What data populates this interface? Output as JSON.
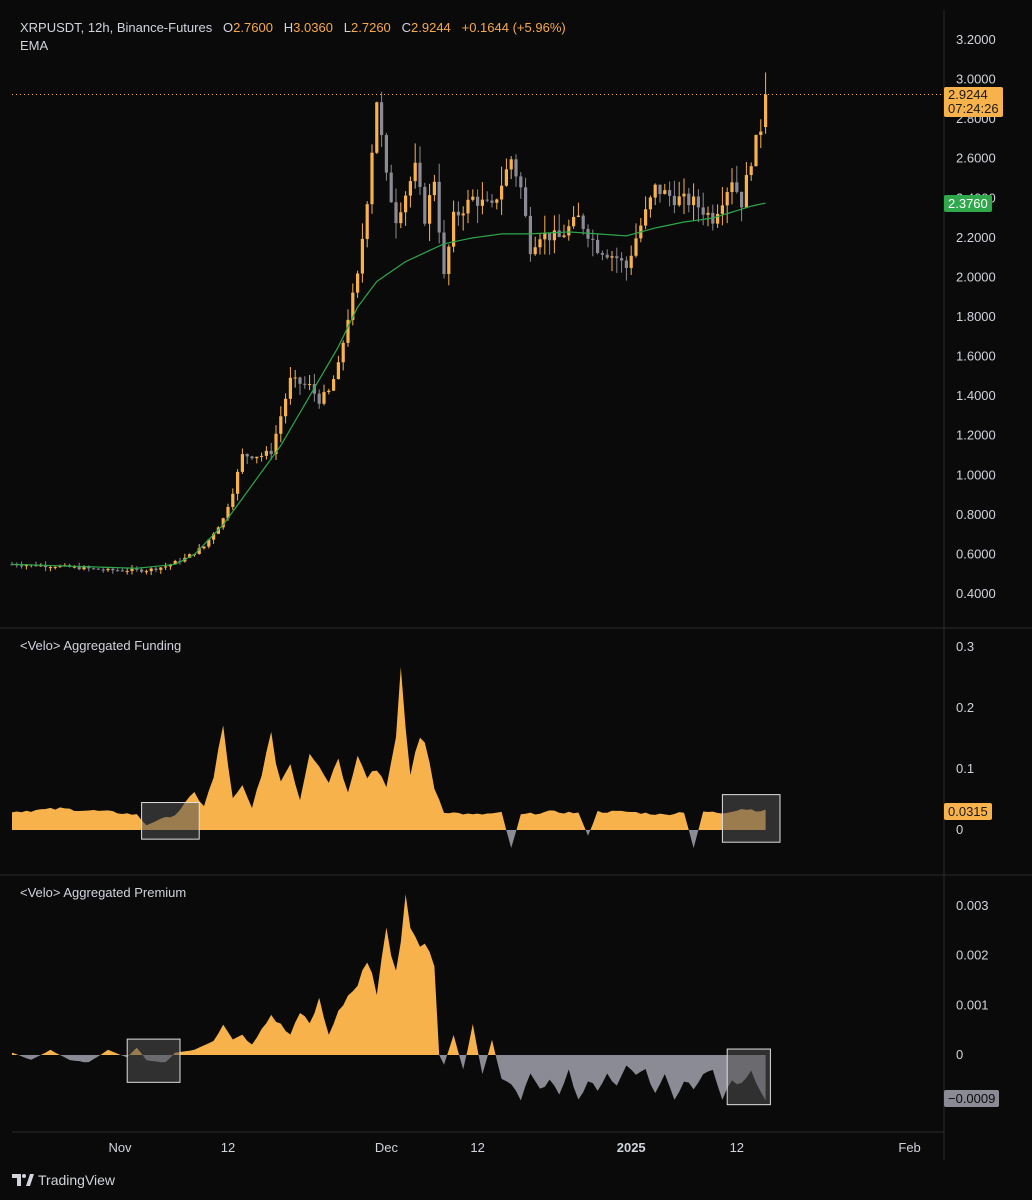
{
  "header": {
    "symbol_line": "XRPUSDT, 12h, Binance-Futures",
    "o_label": "O",
    "o_value": "2.7600",
    "h_label": "H",
    "h_value": "3.0360",
    "l_label": "L",
    "l_value": "2.7260",
    "c_label": "C",
    "c_value": "2.9244",
    "change": "+0.1644 (+5.96%)",
    "indicator": "EMA"
  },
  "colors": {
    "up": "#f7b24c",
    "down": "#8a8b94",
    "ema": "#2ea84a",
    "positive_fill": "#f7b24c",
    "negative_fill": "#8a8b94",
    "bg": "#0a0a0a",
    "grid": "#2a2a2e"
  },
  "branding": {
    "logo_text": "TradingView"
  },
  "price_tags": {
    "last_price": "2.9244",
    "countdown": "07:24:26",
    "ema_value": "2.3760"
  },
  "funding_tag": "0.0315",
  "premium_tag": "−0.0009",
  "chart_data": [
    {
      "type": "candlestick",
      "title": "XRPUSDT, 12h, Binance-Futures",
      "interval": "12h",
      "ylim": [
        0.3,
        3.2
      ],
      "y_ticks": [
        "3.2000",
        "3.0000",
        "2.8000",
        "2.6000",
        "2.4000",
        "2.2000",
        "2.0000",
        "1.8000",
        "1.6000",
        "1.4000",
        "1.2000",
        "1.0000",
        "0.8000",
        "0.6000",
        "0.4000"
      ],
      "x_tick_labels": [
        "Nov",
        "12",
        "Dec",
        "12",
        "2025",
        "12",
        "Feb"
      ],
      "grid": false,
      "series": [
        {
          "name": "EMA",
          "type": "line",
          "last_value": 2.376
        },
        {
          "name": "XRPUSDT",
          "type": "ohlc",
          "last": {
            "o": 2.76,
            "h": 3.036,
            "l": 2.726,
            "c": 2.9244
          }
        }
      ],
      "price_anchors": [
        [
          0,
          0.55
        ],
        [
          10,
          0.54
        ],
        [
          20,
          0.52
        ],
        [
          28,
          0.52
        ],
        [
          32,
          0.54
        ],
        [
          36,
          0.58
        ],
        [
          40,
          0.64
        ],
        [
          44,
          0.78
        ],
        [
          46,
          0.92
        ],
        [
          48,
          1.1
        ],
        [
          52,
          1.1
        ],
        [
          54,
          1.12
        ],
        [
          56,
          1.3
        ],
        [
          58,
          1.48
        ],
        [
          62,
          1.45
        ],
        [
          64,
          1.38
        ],
        [
          66,
          1.42
        ],
        [
          68,
          1.55
        ],
        [
          70,
          1.8
        ],
        [
          72,
          2.0
        ],
        [
          74,
          2.4
        ],
        [
          76,
          2.9
        ],
        [
          78,
          2.5
        ],
        [
          80,
          2.3
        ],
        [
          84,
          2.55
        ],
        [
          86,
          2.3
        ],
        [
          88,
          2.5
        ],
        [
          90,
          2.0
        ],
        [
          92,
          2.3
        ],
        [
          96,
          2.4
        ],
        [
          100,
          2.35
        ],
        [
          104,
          2.6
        ],
        [
          106,
          2.45
        ],
        [
          108,
          2.15
        ],
        [
          110,
          2.22
        ],
        [
          114,
          2.2
        ],
        [
          118,
          2.3
        ],
        [
          122,
          2.15
        ],
        [
          126,
          2.1
        ],
        [
          128,
          2.05
        ],
        [
          130,
          2.2
        ],
        [
          134,
          2.45
        ],
        [
          138,
          2.4
        ],
        [
          142,
          2.38
        ],
        [
          146,
          2.3
        ],
        [
          150,
          2.5
        ],
        [
          152,
          2.38
        ],
        [
          154,
          2.6
        ],
        [
          156,
          2.76
        ],
        [
          157,
          2.9244
        ]
      ],
      "ema_anchors": [
        [
          0,
          0.55
        ],
        [
          26,
          0.53
        ],
        [
          34,
          0.55
        ],
        [
          38,
          0.6
        ],
        [
          44,
          0.75
        ],
        [
          50,
          0.95
        ],
        [
          56,
          1.15
        ],
        [
          62,
          1.4
        ],
        [
          68,
          1.65
        ],
        [
          72,
          1.85
        ],
        [
          76,
          1.98
        ],
        [
          82,
          2.08
        ],
        [
          90,
          2.17
        ],
        [
          96,
          2.2
        ],
        [
          102,
          2.22
        ],
        [
          108,
          2.22
        ],
        [
          116,
          2.23
        ],
        [
          122,
          2.22
        ],
        [
          128,
          2.21
        ],
        [
          134,
          2.25
        ],
        [
          140,
          2.28
        ],
        [
          146,
          2.3
        ],
        [
          150,
          2.33
        ],
        [
          154,
          2.36
        ],
        [
          157,
          2.376
        ]
      ]
    },
    {
      "type": "area",
      "title": "<Velo> Aggregated Funding",
      "ylim": [
        -0.03,
        0.3
      ],
      "y_ticks": [
        "0.3",
        "0.2",
        "0.1",
        "0"
      ],
      "anchors": [
        [
          0,
          0.03
        ],
        [
          10,
          0.035
        ],
        [
          20,
          0.03
        ],
        [
          26,
          0.025
        ],
        [
          28,
          0.008
        ],
        [
          30,
          0.015
        ],
        [
          34,
          0.025
        ],
        [
          38,
          0.06
        ],
        [
          40,
          0.04
        ],
        [
          42,
          0.085
        ],
        [
          44,
          0.17
        ],
        [
          46,
          0.05
        ],
        [
          48,
          0.07
        ],
        [
          50,
          0.035
        ],
        [
          52,
          0.095
        ],
        [
          54,
          0.15
        ],
        [
          56,
          0.08
        ],
        [
          58,
          0.11
        ],
        [
          60,
          0.05
        ],
        [
          62,
          0.13
        ],
        [
          64,
          0.11
        ],
        [
          66,
          0.08
        ],
        [
          68,
          0.12
        ],
        [
          70,
          0.06
        ],
        [
          72,
          0.13
        ],
        [
          74,
          0.09
        ],
        [
          76,
          0.1
        ],
        [
          78,
          0.075
        ],
        [
          80,
          0.145
        ],
        [
          81,
          0.25
        ],
        [
          83,
          0.09
        ],
        [
          85,
          0.16
        ],
        [
          87,
          0.11
        ],
        [
          88,
          0.07
        ],
        [
          90,
          0.03
        ],
        [
          96,
          0.025
        ],
        [
          102,
          0.028
        ],
        [
          104,
          -0.03
        ],
        [
          106,
          0.025
        ],
        [
          112,
          0.03
        ],
        [
          118,
          0.028
        ],
        [
          120,
          -0.01
        ],
        [
          122,
          0.03
        ],
        [
          128,
          0.03
        ],
        [
          136,
          0.025
        ],
        [
          140,
          0.03
        ],
        [
          142,
          -0.03
        ],
        [
          144,
          0.03
        ],
        [
          148,
          0.028
        ],
        [
          152,
          0.035
        ],
        [
          156,
          0.032
        ],
        [
          157,
          0.0315
        ]
      ]
    },
    {
      "type": "area",
      "title": "<Velo> Aggregated Premium",
      "ylim": [
        -0.0012,
        0.0034
      ],
      "y_ticks": [
        "0.003",
        "0.002",
        "0.001",
        "0"
      ],
      "anchors": [
        [
          0,
          5e-05
        ],
        [
          4,
          -0.0001
        ],
        [
          8,
          0.0001
        ],
        [
          12,
          -0.0001
        ],
        [
          16,
          -0.00015
        ],
        [
          20,
          0.0001
        ],
        [
          24,
          -5e-05
        ],
        [
          26,
          0.00015
        ],
        [
          28,
          -0.0001
        ],
        [
          32,
          -0.00015
        ],
        [
          34,
          5e-05
        ],
        [
          38,
          0.0001
        ],
        [
          40,
          0.0002
        ],
        [
          42,
          0.0003
        ],
        [
          44,
          0.0006
        ],
        [
          46,
          0.0003
        ],
        [
          48,
          0.0004
        ],
        [
          50,
          0.0002
        ],
        [
          52,
          0.0005
        ],
        [
          54,
          0.0008
        ],
        [
          56,
          0.0006
        ],
        [
          58,
          0.0004
        ],
        [
          60,
          0.0009
        ],
        [
          62,
          0.0006
        ],
        [
          64,
          0.0011
        ],
        [
          66,
          0.0004
        ],
        [
          68,
          0.0009
        ],
        [
          70,
          0.0012
        ],
        [
          72,
          0.0014
        ],
        [
          74,
          0.0018
        ],
        [
          76,
          0.0013
        ],
        [
          78,
          0.0024
        ],
        [
          80,
          0.0018
        ],
        [
          82,
          0.0031
        ],
        [
          84,
          0.0024
        ],
        [
          86,
          0.0021
        ],
        [
          88,
          0.0019
        ],
        [
          89,
          0.0
        ],
        [
          90,
          -0.0002
        ],
        [
          92,
          0.0004
        ],
        [
          94,
          -0.0003
        ],
        [
          96,
          0.0006
        ],
        [
          98,
          -0.0004
        ],
        [
          100,
          0.0003
        ],
        [
          102,
          -0.0005
        ],
        [
          104,
          -0.0006
        ],
        [
          106,
          -0.0009
        ],
        [
          108,
          -0.0004
        ],
        [
          110,
          -0.0007
        ],
        [
          112,
          -0.0005
        ],
        [
          114,
          -0.0008
        ],
        [
          116,
          -0.0003
        ],
        [
          118,
          -0.0009
        ],
        [
          120,
          -0.0005
        ],
        [
          122,
          -0.0007
        ],
        [
          124,
          -0.0004
        ],
        [
          126,
          -0.0006
        ],
        [
          128,
          -0.0002
        ],
        [
          130,
          -0.0004
        ],
        [
          132,
          -0.0003
        ],
        [
          134,
          -0.0008
        ],
        [
          136,
          -0.0004
        ],
        [
          138,
          -0.0009
        ],
        [
          140,
          -0.0005
        ],
        [
          142,
          -0.0007
        ],
        [
          144,
          -0.0004
        ],
        [
          146,
          -0.0003
        ],
        [
          148,
          -0.0009
        ],
        [
          150,
          -0.0005
        ],
        [
          152,
          -0.0006
        ],
        [
          154,
          -0.0003
        ],
        [
          156,
          -0.0008
        ],
        [
          157,
          -0.0009
        ]
      ]
    }
  ]
}
